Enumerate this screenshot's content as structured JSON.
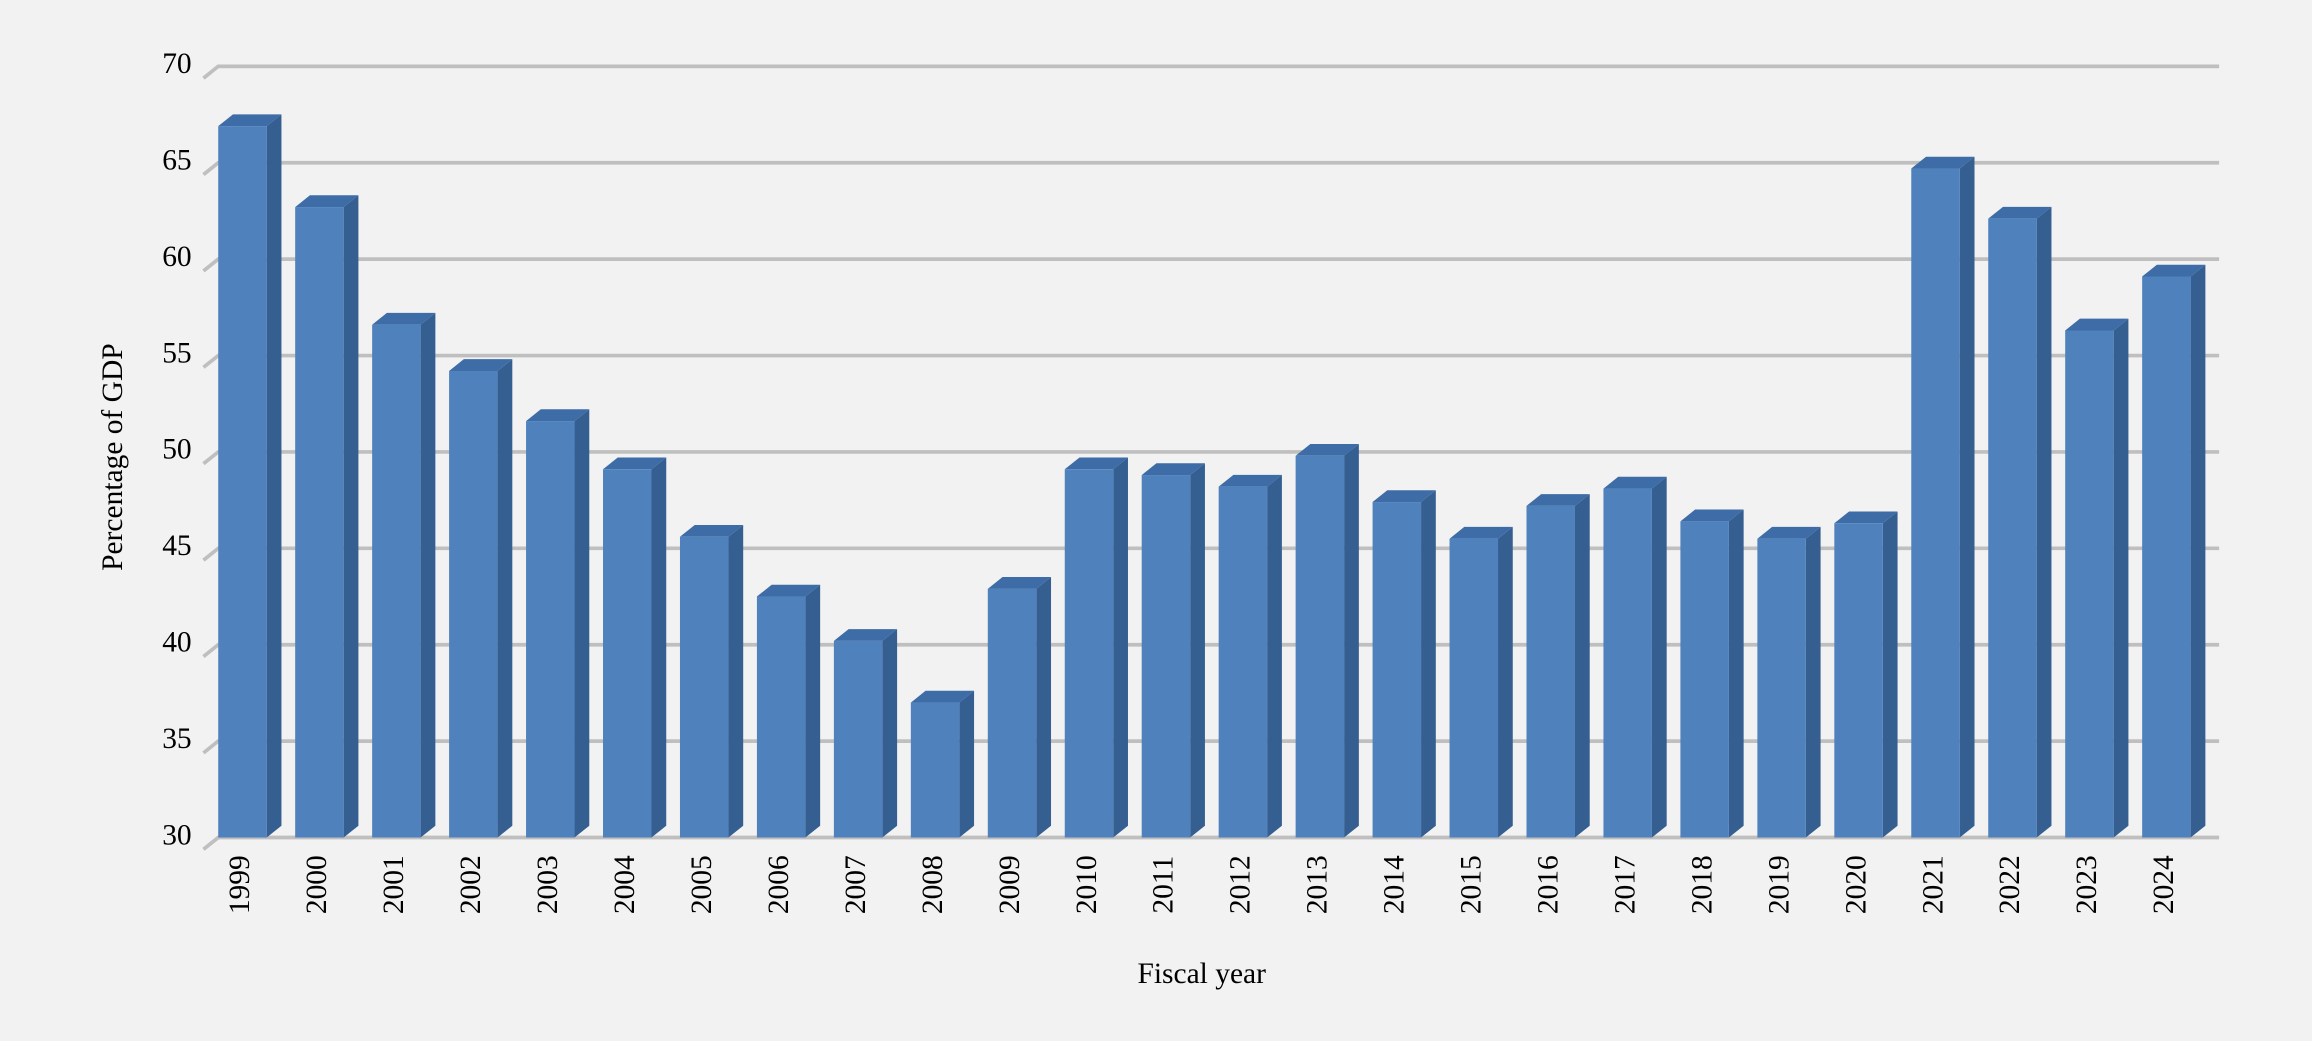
{
  "chart_data": {
    "type": "bar3d",
    "x_label": "Fiscal year",
    "y_label": "Percentage of GDP",
    "categories": [
      "1999",
      "2000",
      "2001",
      "2002",
      "2003",
      "2004",
      "2005",
      "2006",
      "2007",
      "2008",
      "2009",
      "2010",
      "2011",
      "2012",
      "2013",
      "2014",
      "2015",
      "2016",
      "2017",
      "2018",
      "2019",
      "2020",
      "2021",
      "2022",
      "2023",
      "2024"
    ],
    "values": [
      66.9,
      62.7,
      56.6,
      54.2,
      51.6,
      49.1,
      45.6,
      42.5,
      40.2,
      37.0,
      42.9,
      49.1,
      48.8,
      48.2,
      49.8,
      47.4,
      45.5,
      47.2,
      48.1,
      46.4,
      45.5,
      46.3,
      64.7,
      62.1,
      56.3,
      59.1
    ],
    "color": "#4f81bd",
    "ylim": [
      30,
      70
    ],
    "yticks": [
      30,
      35,
      40,
      45,
      50,
      55,
      60,
      65,
      70
    ],
    "grid": true
  }
}
